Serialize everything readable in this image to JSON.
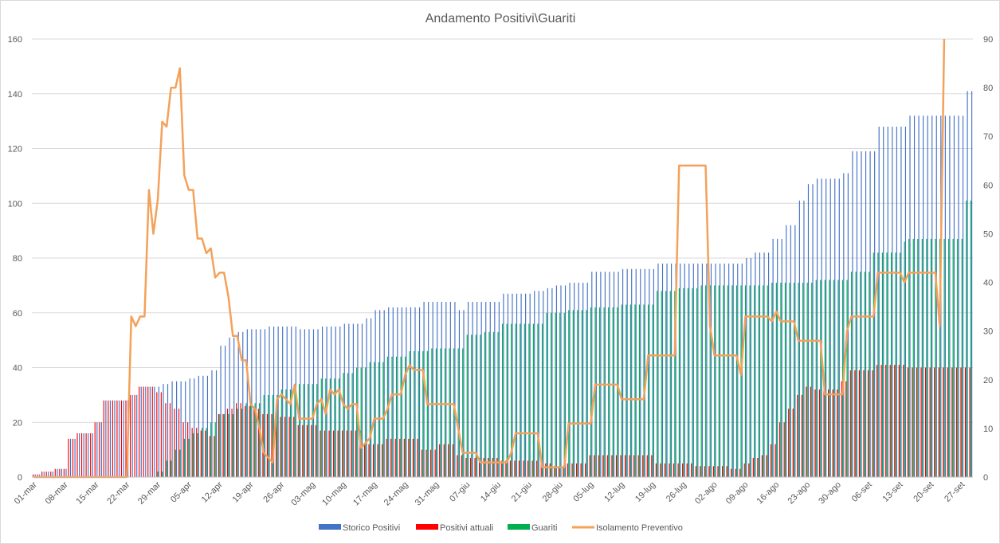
{
  "chart_data": {
    "type": "bar",
    "title": "Andamento Positivi\\Guariti",
    "xlabel": "",
    "ylabel": "",
    "ylim": [
      0,
      160
    ],
    "y2lim": [
      0,
      90
    ],
    "y_ticks": [
      0,
      20,
      40,
      60,
      80,
      100,
      120,
      140,
      160
    ],
    "y2_ticks": [
      0,
      10,
      20,
      30,
      40,
      50,
      60,
      70,
      80,
      90
    ],
    "x_tick_labels": [
      "01-mar",
      "08-mar",
      "15-mar",
      "22-mar",
      "29-mar",
      "05-apr",
      "12-apr",
      "19-apr",
      "26-apr",
      "03-mag",
      "10-mag",
      "17-mag",
      "24-mag",
      "31-mag",
      "07-giu",
      "14-giu",
      "21-giu",
      "28-giu",
      "05-lug",
      "12-lug",
      "19-lug",
      "26-lug",
      "02-ago",
      "09-ago",
      "16-ago",
      "23-ago",
      "30-ago",
      "06-set",
      "13-set",
      "20-set",
      "27-set"
    ],
    "days_count": 213,
    "tick_every": 7,
    "legend_position": "bottom",
    "colors": {
      "storico": "#4472c4",
      "positivi": "#ff0000",
      "guariti": "#00b050",
      "isolamento": "#f4a15a",
      "grid": "#d9d9d9",
      "axis": "#bfbfbf"
    },
    "series": [
      {
        "name": "Storico Positivi",
        "axis": "left",
        "kind": "bar",
        "breakpoints": [
          [
            0,
            1
          ],
          [
            2,
            2
          ],
          [
            5,
            3
          ],
          [
            8,
            14
          ],
          [
            10,
            16
          ],
          [
            14,
            20
          ],
          [
            16,
            28
          ],
          [
            22,
            30
          ],
          [
            24,
            33
          ],
          [
            29,
            34
          ],
          [
            31,
            35
          ],
          [
            35,
            36
          ],
          [
            37,
            37
          ],
          [
            40,
            39
          ],
          [
            42,
            48
          ],
          [
            44,
            51
          ],
          [
            46,
            53
          ],
          [
            48,
            54
          ],
          [
            53,
            55
          ],
          [
            60,
            54
          ],
          [
            65,
            55
          ],
          [
            70,
            56
          ],
          [
            75,
            58
          ],
          [
            77,
            61
          ],
          [
            80,
            62
          ],
          [
            88,
            64
          ],
          [
            96,
            61
          ],
          [
            98,
            64
          ],
          [
            106,
            67
          ],
          [
            113,
            68
          ],
          [
            116,
            69
          ],
          [
            118,
            70
          ],
          [
            121,
            71
          ],
          [
            126,
            75
          ],
          [
            133,
            76
          ],
          [
            141,
            78
          ],
          [
            161,
            80
          ],
          [
            163,
            82
          ],
          [
            167,
            87
          ],
          [
            170,
            92
          ],
          [
            173,
            101
          ],
          [
            175,
            107
          ],
          [
            177,
            109
          ],
          [
            183,
            111
          ],
          [
            185,
            119
          ],
          [
            191,
            128
          ],
          [
            198,
            132
          ],
          [
            210,
            132
          ],
          [
            211,
            141
          ],
          [
            212,
            141
          ]
        ]
      },
      {
        "name": "Positivi attuali",
        "axis": "left",
        "kind": "bar",
        "breakpoints": [
          [
            0,
            1
          ],
          [
            2,
            2
          ],
          [
            5,
            3
          ],
          [
            8,
            14
          ],
          [
            10,
            16
          ],
          [
            14,
            20
          ],
          [
            16,
            28
          ],
          [
            22,
            30
          ],
          [
            24,
            33
          ],
          [
            28,
            31
          ],
          [
            30,
            27
          ],
          [
            32,
            25
          ],
          [
            34,
            20
          ],
          [
            36,
            18
          ],
          [
            38,
            17
          ],
          [
            40,
            15
          ],
          [
            42,
            23
          ],
          [
            44,
            25
          ],
          [
            46,
            27
          ],
          [
            48,
            26
          ],
          [
            50,
            25
          ],
          [
            52,
            23
          ],
          [
            56,
            22
          ],
          [
            60,
            19
          ],
          [
            65,
            17
          ],
          [
            75,
            12
          ],
          [
            80,
            14
          ],
          [
            88,
            10
          ],
          [
            92,
            12
          ],
          [
            96,
            8
          ],
          [
            98,
            7
          ],
          [
            106,
            6
          ],
          [
            113,
            6
          ],
          [
            116,
            5
          ],
          [
            118,
            4
          ],
          [
            121,
            5
          ],
          [
            126,
            8
          ],
          [
            133,
            8
          ],
          [
            141,
            5
          ],
          [
            150,
            4
          ],
          [
            158,
            3
          ],
          [
            160,
            3
          ],
          [
            161,
            5
          ],
          [
            163,
            7
          ],
          [
            165,
            8
          ],
          [
            167,
            12
          ],
          [
            169,
            20
          ],
          [
            171,
            25
          ],
          [
            173,
            30
          ],
          [
            175,
            33
          ],
          [
            177,
            32
          ],
          [
            183,
            35
          ],
          [
            185,
            39
          ],
          [
            191,
            41
          ],
          [
            198,
            40
          ],
          [
            205,
            40
          ],
          [
            210,
            40
          ],
          [
            211,
            40
          ],
          [
            212,
            40
          ]
        ]
      },
      {
        "name": "Guariti",
        "axis": "left",
        "kind": "bar",
        "breakpoints": [
          [
            0,
            0
          ],
          [
            26,
            0
          ],
          [
            28,
            2
          ],
          [
            30,
            6
          ],
          [
            32,
            10
          ],
          [
            34,
            14
          ],
          [
            36,
            16
          ],
          [
            38,
            18
          ],
          [
            40,
            20
          ],
          [
            42,
            23
          ],
          [
            46,
            25
          ],
          [
            48,
            27
          ],
          [
            52,
            30
          ],
          [
            56,
            32
          ],
          [
            60,
            34
          ],
          [
            65,
            36
          ],
          [
            70,
            38
          ],
          [
            73,
            40
          ],
          [
            76,
            42
          ],
          [
            80,
            44
          ],
          [
            85,
            46
          ],
          [
            90,
            47
          ],
          [
            98,
            52
          ],
          [
            102,
            53
          ],
          [
            106,
            56
          ],
          [
            113,
            56
          ],
          [
            116,
            60
          ],
          [
            118,
            60
          ],
          [
            121,
            61
          ],
          [
            126,
            62
          ],
          [
            133,
            63
          ],
          [
            141,
            68
          ],
          [
            145,
            68
          ],
          [
            146,
            69
          ],
          [
            150,
            69
          ],
          [
            151,
            70
          ],
          [
            161,
            70
          ],
          [
            167,
            71
          ],
          [
            173,
            71
          ],
          [
            177,
            72
          ],
          [
            185,
            75
          ],
          [
            190,
            82
          ],
          [
            197,
            86
          ],
          [
            198,
            87
          ],
          [
            210,
            87
          ],
          [
            211,
            101
          ],
          [
            212,
            101
          ]
        ]
      },
      {
        "name": "Isolamento Preventivo",
        "axis": "right",
        "kind": "line",
        "points": [
          [
            0,
            0
          ],
          [
            21,
            0
          ],
          [
            22,
            33
          ],
          [
            23,
            31
          ],
          [
            24,
            33
          ],
          [
            25,
            33
          ],
          [
            26,
            59
          ],
          [
            27,
            50
          ],
          [
            28,
            57
          ],
          [
            29,
            73
          ],
          [
            30,
            72
          ],
          [
            31,
            80
          ],
          [
            32,
            80
          ],
          [
            33,
            84
          ],
          [
            34,
            62
          ],
          [
            35,
            59
          ],
          [
            36,
            59
          ],
          [
            37,
            49
          ],
          [
            38,
            49
          ],
          [
            39,
            46
          ],
          [
            40,
            47
          ],
          [
            41,
            41
          ],
          [
            42,
            42
          ],
          [
            43,
            42
          ],
          [
            44,
            37
          ],
          [
            45,
            29
          ],
          [
            46,
            29
          ],
          [
            47,
            24
          ],
          [
            48,
            24
          ],
          [
            49,
            15
          ],
          [
            50,
            14
          ],
          [
            51,
            10
          ],
          [
            52,
            5
          ],
          [
            53,
            4
          ],
          [
            54,
            3
          ],
          [
            55,
            16
          ],
          [
            56,
            17
          ],
          [
            57,
            16
          ],
          [
            58,
            15
          ],
          [
            59,
            19
          ],
          [
            60,
            12
          ],
          [
            63,
            12
          ],
          [
            64,
            15
          ],
          [
            65,
            16
          ],
          [
            66,
            13
          ],
          [
            67,
            18
          ],
          [
            68,
            17
          ],
          [
            69,
            18
          ],
          [
            70,
            15
          ],
          [
            71,
            14
          ],
          [
            72,
            15
          ],
          [
            73,
            15
          ],
          [
            74,
            6
          ],
          [
            75,
            7
          ],
          [
            76,
            8
          ],
          [
            77,
            12
          ],
          [
            79,
            12
          ],
          [
            80,
            14
          ],
          [
            81,
            17
          ],
          [
            83,
            17
          ],
          [
            84,
            21
          ],
          [
            85,
            23
          ],
          [
            86,
            22
          ],
          [
            88,
            22
          ],
          [
            89,
            15
          ],
          [
            95,
            15
          ],
          [
            96,
            10
          ],
          [
            97,
            5
          ],
          [
            100,
            5
          ],
          [
            101,
            3
          ],
          [
            106,
            3
          ],
          [
            107,
            3
          ],
          [
            108,
            5
          ],
          [
            109,
            9
          ],
          [
            114,
            9
          ],
          [
            115,
            2
          ],
          [
            120,
            2
          ],
          [
            121,
            11
          ],
          [
            126,
            11
          ],
          [
            127,
            19
          ],
          [
            132,
            19
          ],
          [
            133,
            16
          ],
          [
            138,
            16
          ],
          [
            139,
            25
          ],
          [
            145,
            25
          ],
          [
            146,
            64
          ],
          [
            152,
            64
          ],
          [
            153,
            31
          ],
          [
            154,
            25
          ],
          [
            159,
            25
          ],
          [
            160,
            21
          ],
          [
            161,
            33
          ],
          [
            166,
            33
          ],
          [
            167,
            32
          ],
          [
            168,
            34
          ],
          [
            169,
            32
          ],
          [
            172,
            32
          ],
          [
            173,
            28
          ],
          [
            178,
            28
          ],
          [
            179,
            17
          ],
          [
            183,
            17
          ],
          [
            184,
            30
          ],
          [
            185,
            33
          ],
          [
            190,
            33
          ],
          [
            191,
            42
          ],
          [
            196,
            42
          ],
          [
            197,
            40
          ],
          [
            198,
            42
          ],
          [
            204,
            42
          ],
          [
            205,
            31
          ],
          [
            206,
            90
          ]
        ]
      }
    ]
  }
}
